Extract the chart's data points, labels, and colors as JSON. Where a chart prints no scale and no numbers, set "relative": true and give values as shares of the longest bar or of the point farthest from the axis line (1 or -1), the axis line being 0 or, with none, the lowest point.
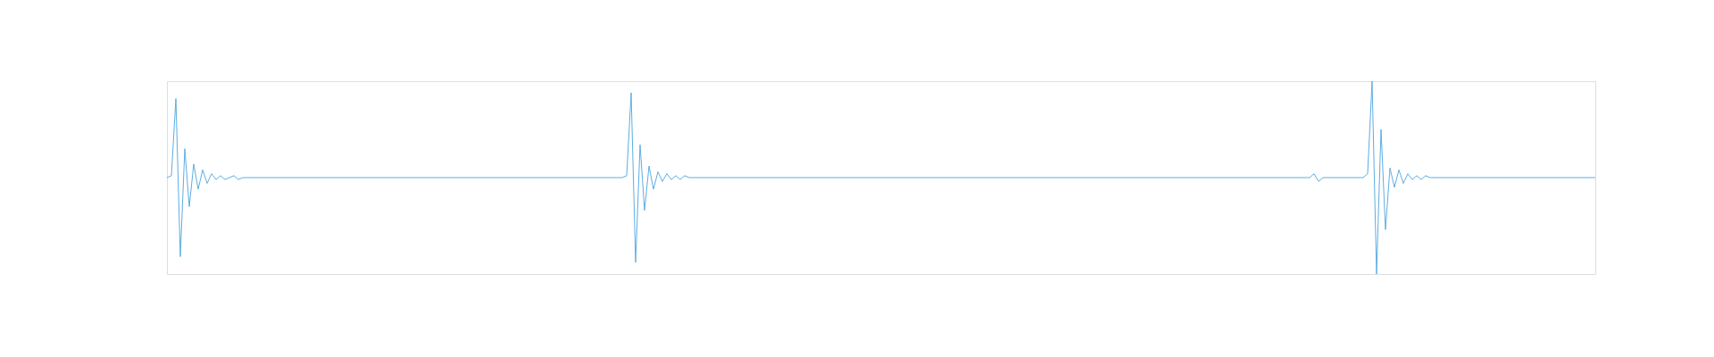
{
  "chart_data": {
    "type": "line",
    "relative": true,
    "categories": [
      null,
      null,
      null,
      null,
      null,
      null,
      null,
      null,
      null,
      null,
      null,
      null,
      null,
      null,
      null,
      null,
      null,
      null,
      null,
      null,
      null,
      null,
      null,
      null,
      null,
      null,
      null,
      null,
      null,
      null,
      null,
      null,
      null,
      null,
      null,
      null,
      null,
      null,
      null,
      null,
      null,
      null,
      null,
      null,
      null,
      null,
      null,
      null,
      null,
      null,
      null,
      null,
      null,
      null,
      null,
      null,
      null,
      null,
      null,
      null,
      null,
      null,
      null,
      null,
      null,
      null,
      null,
      null,
      null,
      null,
      null,
      null,
      null,
      null,
      null,
      null,
      null,
      null,
      null,
      null,
      null,
      null,
      null,
      null,
      null,
      null,
      null,
      null,
      null,
      null,
      null,
      null,
      null,
      null,
      null,
      null,
      null,
      null,
      null,
      null,
      null,
      null,
      null,
      null,
      null,
      null,
      null,
      null,
      null,
      null,
      null,
      null,
      null,
      null,
      null,
      null,
      null,
      null,
      null,
      null,
      null,
      null,
      null,
      null,
      null,
      null,
      null,
      null,
      null,
      null,
      null,
      null,
      null,
      null,
      null,
      null,
      null,
      null,
      null,
      null,
      null,
      null,
      null,
      null,
      null,
      null,
      null,
      null,
      null,
      null,
      null,
      null,
      null,
      null,
      null,
      null,
      null,
      null,
      null,
      null,
      null,
      null,
      null,
      null,
      null,
      null,
      null,
      null,
      null,
      null,
      null,
      null,
      null,
      null,
      null,
      null,
      null,
      null,
      null,
      null,
      null,
      null,
      null,
      null,
      null,
      null,
      null,
      null,
      null,
      null,
      null,
      null,
      null,
      null,
      null,
      null,
      null,
      null,
      null,
      null,
      null,
      null,
      null,
      null,
      null,
      null,
      null,
      null,
      null,
      null,
      null,
      null,
      null,
      null,
      null,
      null,
      null,
      null,
      null,
      null,
      null,
      null,
      null,
      null,
      null,
      null,
      null,
      null,
      null,
      null,
      null,
      null,
      null,
      null,
      null,
      null,
      null,
      null,
      null,
      null,
      null,
      null,
      null,
      null,
      null,
      null,
      null,
      null,
      null,
      null,
      null,
      null,
      null,
      null,
      null,
      null,
      null,
      null,
      null,
      null,
      null,
      null,
      null,
      null,
      null,
      null,
      null,
      null,
      null,
      null,
      null,
      null,
      null,
      null,
      null,
      null,
      null,
      null,
      null,
      null,
      null,
      null,
      null,
      null,
      null,
      null,
      null,
      null,
      null,
      null,
      null,
      null,
      null,
      null,
      null,
      null,
      null,
      null,
      null,
      null,
      null,
      null,
      null,
      null,
      null,
      null,
      null,
      null,
      null,
      null,
      null,
      null,
      null,
      null,
      null,
      null,
      null,
      null,
      null,
      null,
      null
    ],
    "series": [
      {
        "color": "#5dade2",
        "values": [
          0.5,
          0.51,
          0.91,
          0.09,
          0.65,
          0.35,
          0.57,
          0.44,
          0.54,
          0.47,
          0.52,
          0.49,
          0.51,
          0.49,
          0.5,
          0.51,
          0.49,
          0.5,
          0.5,
          0.5,
          0.5,
          0.5,
          0.5,
          0.5,
          0.5,
          0.5,
          0.5,
          0.5,
          0.5,
          0.5,
          0.5,
          0.5,
          0.5,
          0.5,
          0.5,
          0.5,
          0.5,
          0.5,
          0.5,
          0.5,
          0.5,
          0.5,
          0.5,
          0.5,
          0.5,
          0.5,
          0.5,
          0.5,
          0.5,
          0.5,
          0.5,
          0.5,
          0.5,
          0.5,
          0.5,
          0.5,
          0.5,
          0.5,
          0.5,
          0.5,
          0.5,
          0.5,
          0.5,
          0.5,
          0.5,
          0.5,
          0.5,
          0.5,
          0.5,
          0.5,
          0.5,
          0.5,
          0.5,
          0.5,
          0.5,
          0.5,
          0.5,
          0.5,
          0.5,
          0.5,
          0.5,
          0.5,
          0.5,
          0.5,
          0.5,
          0.5,
          0.5,
          0.5,
          0.5,
          0.5,
          0.5,
          0.5,
          0.5,
          0.5,
          0.5,
          0.5,
          0.5,
          0.5,
          0.5,
          0.5,
          0.5,
          0.5,
          0.5,
          0.51,
          0.94,
          0.06,
          0.67,
          0.33,
          0.56,
          0.44,
          0.53,
          0.48,
          0.52,
          0.49,
          0.51,
          0.49,
          0.51,
          0.5,
          0.5,
          0.5,
          0.5,
          0.5,
          0.5,
          0.5,
          0.5,
          0.5,
          0.5,
          0.5,
          0.5,
          0.5,
          0.5,
          0.5,
          0.5,
          0.5,
          0.5,
          0.5,
          0.5,
          0.5,
          0.5,
          0.5,
          0.5,
          0.5,
          0.5,
          0.5,
          0.5,
          0.5,
          0.5,
          0.5,
          0.5,
          0.5,
          0.5,
          0.5,
          0.5,
          0.5,
          0.5,
          0.5,
          0.5,
          0.5,
          0.5,
          0.5,
          0.5,
          0.5,
          0.5,
          0.5,
          0.5,
          0.5,
          0.5,
          0.5,
          0.5,
          0.5,
          0.5,
          0.5,
          0.5,
          0.5,
          0.5,
          0.5,
          0.5,
          0.5,
          0.5,
          0.5,
          0.5,
          0.5,
          0.5,
          0.5,
          0.5,
          0.5,
          0.5,
          0.5,
          0.5,
          0.5,
          0.5,
          0.5,
          0.5,
          0.5,
          0.5,
          0.5,
          0.5,
          0.5,
          0.5,
          0.5,
          0.5,
          0.5,
          0.5,
          0.5,
          0.5,
          0.5,
          0.5,
          0.5,
          0.5,
          0.5,
          0.5,
          0.5,
          0.5,
          0.5,
          0.5,
          0.5,
          0.5,
          0.5,
          0.5,
          0.5,
          0.5,
          0.5,
          0.5,
          0.5,
          0.5,
          0.5,
          0.5,
          0.5,
          0.5,
          0.5,
          0.5,
          0.5,
          0.5,
          0.5,
          0.5,
          0.5,
          0.5,
          0.5,
          0.5,
          0.5,
          0.5,
          0.5,
          0.5,
          0.5,
          0.5,
          0.5,
          0.5,
          0.5,
          0.5,
          0.5,
          0.5,
          0.5,
          0.5,
          0.5,
          0.5,
          0.5,
          0.5,
          0.52,
          0.48,
          0.5,
          0.5,
          0.5,
          0.5,
          0.5,
          0.5,
          0.5,
          0.5,
          0.5,
          0.5,
          0.52,
          1,
          0,
          0.75,
          0.23,
          0.55,
          0.45,
          0.54,
          0.47,
          0.52,
          0.49,
          0.51,
          0.49,
          0.51,
          0.5,
          0.5,
          0.5,
          0.5,
          0.5,
          0.5,
          0.5,
          0.5,
          0.5,
          0.5,
          0.5,
          0.5,
          0.5,
          0.5,
          0.5,
          0.5,
          0.5,
          0.5,
          0.5,
          0.5,
          0.5,
          0.5,
          0.5,
          0.5,
          0.5,
          0.5,
          0.5,
          0.5,
          0.5,
          0.5,
          0.5,
          0.5,
          0.5,
          0.5,
          0.5,
          0.5,
          0.5,
          0.5
        ]
      }
    ]
  }
}
